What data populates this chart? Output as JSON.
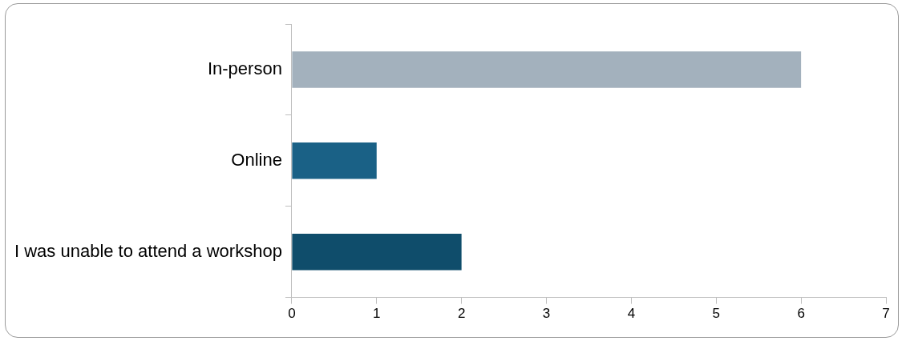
{
  "chart_data": {
    "type": "bar",
    "orientation": "horizontal",
    "categories": [
      "In-person",
      "Online",
      "I was unable to attend a workshop"
    ],
    "values": [
      6,
      1,
      2
    ],
    "colors": [
      "#a3b1bd",
      "#1a6186",
      "#0f4d6b"
    ],
    "xlim": [
      0,
      7
    ],
    "xticks": [
      0,
      1,
      2,
      3,
      4,
      5,
      6,
      7
    ],
    "grid": false,
    "legend": false
  }
}
